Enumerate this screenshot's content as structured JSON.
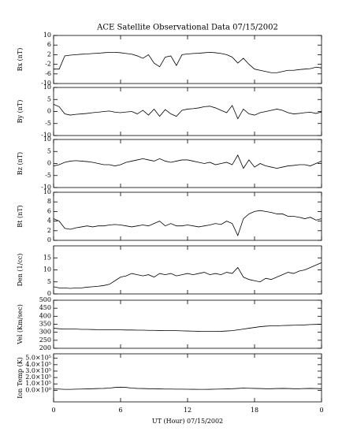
{
  "chart_data": [
    {
      "type": "line",
      "title": "ACE Satellite Observational Data   07/15/2002",
      "ylabel": "Bx (nT)",
      "color": "#000000",
      "x": [
        0,
        0.5,
        1,
        1.5,
        2,
        2.5,
        3,
        3.5,
        4,
        4.5,
        5,
        5.5,
        6,
        6.5,
        7,
        7.5,
        8,
        8.5,
        9,
        9.5,
        10,
        10.5,
        11,
        11.5,
        12,
        12.5,
        13,
        13.5,
        14,
        14.5,
        15,
        15.5,
        16,
        16.5,
        17,
        17.5,
        18,
        18.5,
        19,
        19.5,
        20,
        20.5,
        21,
        21.5,
        22,
        22.5,
        23,
        23.5,
        24
      ],
      "values": [
        -4,
        -4,
        1.5,
        1.8,
        2.0,
        2.2,
        2.3,
        2.5,
        2.6,
        2.8,
        3.0,
        3.0,
        2.8,
        2.5,
        2.2,
        1.5,
        0.5,
        2.0,
        -1.5,
        -3,
        1.0,
        1.5,
        -2.5,
        2.0,
        2.3,
        2.5,
        2.6,
        2.8,
        3.0,
        2.8,
        2.5,
        2.0,
        1.0,
        -1.5,
        0.5,
        -2.0,
        -4.0,
        -4.5,
        -5.0,
        -5.5,
        -5.5,
        -5.0,
        -4.5,
        -4.5,
        -4.2,
        -4.0,
        -3.8,
        -3.2,
        -3.5
      ],
      "xlim": [
        0,
        24
      ],
      "ylim": [
        -10,
        10
      ],
      "yticks": [
        -10,
        -6,
        -2,
        2,
        6,
        10
      ]
    },
    {
      "type": "line",
      "ylabel": "By (nT)",
      "color": "#000000",
      "x": [
        0,
        0.5,
        1,
        1.5,
        2,
        2.5,
        3,
        3.5,
        4,
        4.5,
        5,
        5.5,
        6,
        6.5,
        7,
        7.5,
        8,
        8.5,
        9,
        9.5,
        10,
        10.5,
        11,
        11.5,
        12,
        12.5,
        13,
        13.5,
        14,
        14.5,
        15,
        15.5,
        16,
        16.5,
        17,
        17.5,
        18,
        18.5,
        19,
        19.5,
        20,
        20.5,
        21,
        21.5,
        22,
        22.5,
        23,
        23.5,
        24
      ],
      "values": [
        3,
        2,
        -1,
        -1.5,
        -1.2,
        -1.0,
        -0.8,
        -0.5,
        -0.3,
        0,
        0.2,
        -0.3,
        -0.5,
        -0.2,
        0,
        -1.0,
        0.5,
        -1.5,
        1.0,
        -2.0,
        0.8,
        -1.0,
        -2.0,
        0.5,
        1.0,
        1.2,
        1.5,
        2.0,
        2.2,
        1.5,
        0.5,
        -0.5,
        2.5,
        -3.0,
        1.0,
        -1.0,
        -1.5,
        -0.5,
        0,
        0.5,
        1.0,
        0.5,
        -0.5,
        -1.0,
        -0.8,
        -0.5,
        -0.3,
        -0.8,
        -0.2
      ],
      "xlim": [
        0,
        24
      ],
      "ylim": [
        -10,
        10
      ],
      "yticks": [
        -10,
        -5,
        0,
        5,
        10
      ]
    },
    {
      "type": "line",
      "ylabel": "Bz (nT)",
      "color": "#000000",
      "x": [
        0,
        0.5,
        1,
        1.5,
        2,
        2.5,
        3,
        3.5,
        4,
        4.5,
        5,
        5.5,
        6,
        6.5,
        7,
        7.5,
        8,
        8.5,
        9,
        9.5,
        10,
        10.5,
        11,
        11.5,
        12,
        12.5,
        13,
        13.5,
        14,
        14.5,
        15,
        15.5,
        16,
        16.5,
        17,
        17.5,
        18,
        18.5,
        19,
        19.5,
        20,
        20.5,
        21,
        21.5,
        22,
        22.5,
        23,
        23.5,
        24
      ],
      "values": [
        -1,
        -0.5,
        0.5,
        1.0,
        1.2,
        1.0,
        0.8,
        0.5,
        0,
        -0.5,
        -0.5,
        -1.0,
        -0.5,
        0.5,
        1.0,
        1.5,
        2.0,
        1.5,
        1.0,
        2.0,
        1.0,
        0.5,
        1.0,
        1.5,
        1.5,
        1.0,
        0.5,
        0,
        0.5,
        -0.5,
        0,
        0.5,
        -0.5,
        3.5,
        -2.0,
        1.5,
        -1.5,
        0,
        -1.0,
        -1.5,
        -2.0,
        -1.5,
        -1.0,
        -0.8,
        -0.5,
        -0.5,
        -1.0,
        0,
        1.0
      ],
      "xlim": [
        0,
        24
      ],
      "ylim": [
        -10,
        10
      ],
      "yticks": [
        -10,
        -5,
        0,
        5,
        10
      ]
    },
    {
      "type": "line",
      "ylabel": "Bt (nT)",
      "color": "#000000",
      "x": [
        0,
        0.5,
        1,
        1.5,
        2,
        2.5,
        3,
        3.5,
        4,
        4.5,
        5,
        5.5,
        6,
        6.5,
        7,
        7.5,
        8,
        8.5,
        9,
        9.5,
        10,
        10.5,
        11,
        11.5,
        12,
        12.5,
        13,
        13.5,
        14,
        14.5,
        15,
        15.5,
        16,
        16.5,
        17,
        17.5,
        18,
        18.5,
        19,
        19.5,
        20,
        20.5,
        21,
        21.5,
        22,
        22.5,
        23,
        23.5,
        24
      ],
      "values": [
        4.5,
        4.0,
        2.5,
        2.3,
        2.6,
        2.8,
        3.0,
        2.8,
        3.0,
        3.0,
        3.2,
        3.3,
        3.2,
        3.0,
        2.8,
        3.0,
        3.2,
        3.0,
        3.5,
        4.0,
        3.0,
        3.5,
        3.0,
        3.0,
        3.2,
        3.0,
        2.8,
        3.0,
        3.2,
        3.5,
        3.3,
        4.0,
        3.5,
        1.0,
        4.5,
        5.5,
        6.0,
        6.2,
        6.0,
        5.8,
        5.5,
        5.5,
        5.0,
        5.0,
        4.8,
        4.5,
        4.8,
        4.2,
        4.5
      ],
      "xlim": [
        0,
        24
      ],
      "ylim": [
        0,
        10
      ],
      "yticks": [
        0,
        2,
        4,
        6,
        8,
        10
      ]
    },
    {
      "type": "line",
      "ylabel": "Den (1/cc)",
      "color": "#000000",
      "x": [
        0,
        0.5,
        1,
        1.5,
        2,
        2.5,
        3,
        3.5,
        4,
        4.5,
        5,
        5.5,
        6,
        6.5,
        7,
        7.5,
        8,
        8.5,
        9,
        9.5,
        10,
        10.5,
        11,
        11.5,
        12,
        12.5,
        13,
        13.5,
        14,
        14.5,
        15,
        15.5,
        16,
        16.5,
        17,
        17.5,
        18,
        18.5,
        19,
        19.5,
        20,
        20.5,
        21,
        21.5,
        22,
        22.5,
        23,
        23.5,
        24
      ],
      "values": [
        3,
        2.5,
        2.5,
        2.3,
        2.5,
        2.5,
        2.8,
        3.0,
        3.2,
        3.5,
        4.0,
        5.5,
        7.0,
        7.5,
        8.5,
        8.0,
        7.5,
        8.0,
        7.0,
        8.5,
        8.0,
        8.5,
        7.5,
        8.0,
        8.5,
        8.0,
        8.5,
        9.0,
        8.0,
        8.5,
        8.0,
        9.0,
        8.5,
        11.0,
        7.0,
        6.0,
        5.5,
        5.0,
        6.5,
        6.0,
        7.0,
        8.0,
        9.0,
        8.5,
        9.5,
        10.0,
        11.0,
        12.0,
        13.0
      ],
      "xlim": [
        0,
        24
      ],
      "ylim": [
        0,
        20
      ],
      "yticks": [
        0,
        5,
        10,
        15
      ]
    },
    {
      "type": "line",
      "ylabel": "Vel (Km/sec)",
      "color": "#000000",
      "x": [
        0,
        0.5,
        1,
        1.5,
        2,
        2.5,
        3,
        3.5,
        4,
        4.5,
        5,
        5.5,
        6,
        6.5,
        7,
        7.5,
        8,
        8.5,
        9,
        9.5,
        10,
        10.5,
        11,
        11.5,
        12,
        12.5,
        13,
        13.5,
        14,
        14.5,
        15,
        15.5,
        16,
        16.5,
        17,
        17.5,
        18,
        18.5,
        19,
        19.5,
        20,
        20.5,
        21,
        21.5,
        22,
        22.5,
        23,
        23.5,
        24
      ],
      "values": [
        325,
        322,
        320,
        320,
        320,
        318,
        318,
        317,
        316,
        316,
        315,
        315,
        315,
        314,
        314,
        313,
        313,
        312,
        312,
        311,
        310,
        310,
        310,
        309,
        308,
        307,
        306,
        305,
        305,
        305,
        306,
        308,
        310,
        315,
        320,
        325,
        330,
        335,
        338,
        340,
        340,
        342,
        343,
        344,
        345,
        346,
        348,
        349,
        350
      ],
      "xlim": [
        0,
        24
      ],
      "ylim": [
        200,
        500
      ],
      "yticks": [
        200,
        250,
        300,
        350,
        400,
        450,
        500
      ]
    },
    {
      "type": "line",
      "ylabel": "Ion Temp (K)",
      "xlabel": "UT (Hour)   07/15/2002",
      "color": "#000000",
      "x": [
        0,
        0.5,
        1,
        1.5,
        2,
        2.5,
        3,
        3.5,
        4,
        4.5,
        5,
        5.5,
        6,
        6.5,
        7,
        7.5,
        8,
        8.5,
        9,
        9.5,
        10,
        10.5,
        11,
        11.5,
        12,
        12.5,
        13,
        13.5,
        14,
        14.5,
        15,
        15.5,
        16,
        16.5,
        17,
        17.5,
        18,
        18.5,
        19,
        19.5,
        20,
        20.5,
        21,
        21.5,
        22,
        22.5,
        23,
        23.5,
        24
      ],
      "values": [
        20000,
        20000,
        15000,
        15000,
        18000,
        20000,
        22000,
        25000,
        28000,
        30000,
        35000,
        45000,
        50000,
        45000,
        35000,
        30000,
        28000,
        25000,
        25000,
        22000,
        20000,
        20000,
        18000,
        18000,
        17000,
        16000,
        15000,
        15000,
        16000,
        18000,
        20000,
        22000,
        25000,
        30000,
        35000,
        32000,
        30000,
        28000,
        25000,
        25000,
        28000,
        30000,
        28000,
        25000,
        25000,
        28000,
        30000,
        28000,
        25000
      ],
      "xlim": [
        0,
        24
      ],
      "ylim": [
        -180000,
        570000
      ],
      "yticks": [
        {
          "value": 0,
          "label": "0.0×10⁰"
        },
        {
          "value": 100000,
          "label": "1.0×10⁵"
        },
        {
          "value": 200000,
          "label": "2.0×10⁵"
        },
        {
          "value": 300000,
          "label": "3.0×10⁵"
        },
        {
          "value": 400000,
          "label": "4.0×10⁵"
        },
        {
          "value": 500000,
          "label": "5.0×10⁵"
        }
      ],
      "xticks": [
        0,
        6,
        12,
        18,
        {
          "value": 24,
          "label": "0"
        }
      ]
    }
  ]
}
